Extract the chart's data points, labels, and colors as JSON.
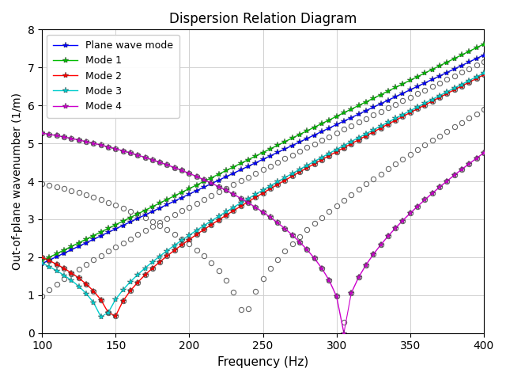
{
  "title": "Dispersion Relation Diagram",
  "xlabel": "Frequency (Hz)",
  "ylabel": "Out-of-plane wavenumber (1/m)",
  "xlim": [
    100,
    400
  ],
  "ylim": [
    0,
    8
  ],
  "c_sound": 343.0,
  "freq_start": 100,
  "freq_end": 400,
  "freq_step": 5,
  "plane_wave": {
    "name": "Plane wave mode",
    "color": "#0000FF",
    "c_eff": 343.0,
    "kc": 0.0
  },
  "mode1": {
    "name": "Mode 1",
    "color": "#00BB00",
    "c_eff": 330.0,
    "kc": 0.0
  },
  "mode2": {
    "name": "Mode 2",
    "color": "#FF0000",
    "c_eff": 343.0,
    "kc": 2.71,
    "fc": 148.0
  },
  "mode3": {
    "name": "Mode 3",
    "color": "#00CCCC",
    "c_eff": 343.0,
    "kc": 2.6,
    "fc": 142.0
  },
  "mode4": {
    "name": "Mode 4",
    "color": "#CC00CC",
    "c_eff": 343.0,
    "kc": 5.58,
    "fc": 305.0
  },
  "gray_bands": [
    {
      "kc": 0.0,
      "c_eff": 55.0,
      "type": "linear"
    },
    {
      "kc": 1.55,
      "c_eff": 343.0,
      "type": "waveguide"
    },
    {
      "kc": 2.71,
      "c_eff": 343.0,
      "type": "waveguide"
    },
    {
      "kc": 4.35,
      "c_eff": 343.0,
      "type": "waveguide"
    },
    {
      "kc": 5.58,
      "c_eff": 343.0,
      "type": "waveguide"
    }
  ],
  "background_color": "#ffffff",
  "grid_color": "#d0d0d0",
  "legend_loc": "upper left",
  "marker_size": 6,
  "linewidth": 1.0
}
